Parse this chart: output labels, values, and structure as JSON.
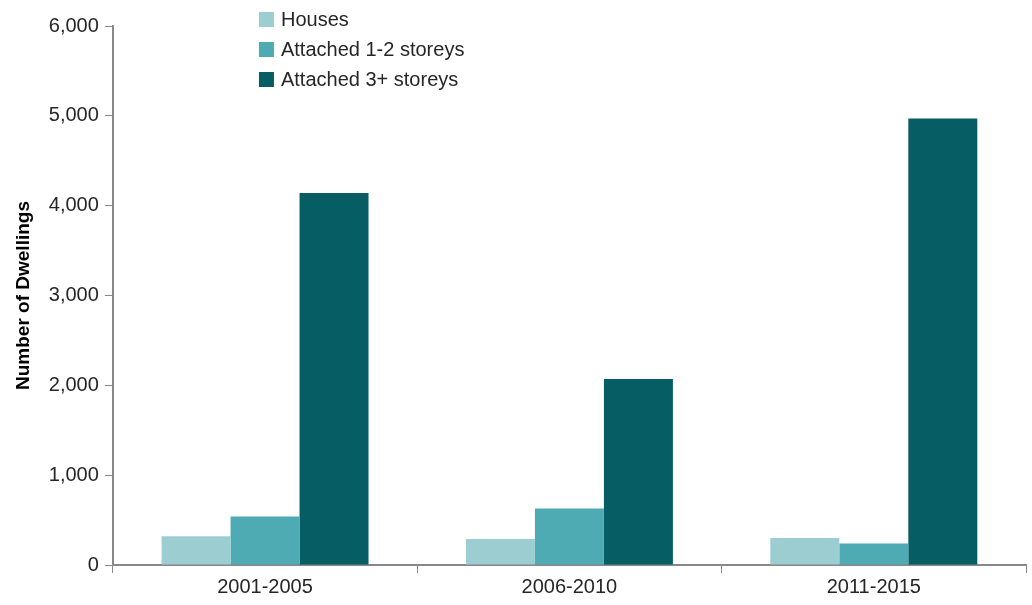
{
  "chart_data": {
    "type": "bar",
    "ylabel": "Number of Dwellings",
    "categories": [
      "2001-2005",
      "2006-2010",
      "2011-2015"
    ],
    "series": [
      {
        "name": "Houses",
        "color": "#9ccdd1",
        "values": [
          320,
          290,
          300
        ]
      },
      {
        "name": "Attached 1-2 storeys",
        "color": "#4eaab3",
        "values": [
          540,
          630,
          240
        ]
      },
      {
        "name": "Attached 3+ storeys",
        "color": "#065d63",
        "values": [
          4140,
          2070,
          4970
        ]
      }
    ],
    "ylim": [
      0,
      6000
    ],
    "yticks": [
      {
        "value": 0,
        "label": "0"
      },
      {
        "value": 1000,
        "label": "1,000"
      },
      {
        "value": 2000,
        "label": "2,000"
      },
      {
        "value": 3000,
        "label": "3,000"
      },
      {
        "value": 4000,
        "label": "4,000"
      },
      {
        "value": 5000,
        "label": "5,000"
      },
      {
        "value": 6000,
        "label": "6,000"
      }
    ],
    "grid": false,
    "legend": "top"
  }
}
